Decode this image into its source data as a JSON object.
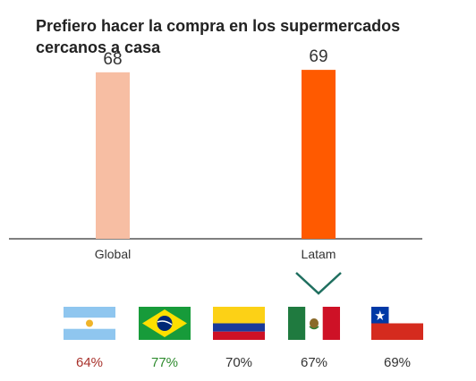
{
  "chart_data": {
    "type": "bar",
    "title": "Prefiero hacer la compra en los supermercados cercanos a casa",
    "categories": [
      "Global",
      "Latam"
    ],
    "values": [
      68,
      69
    ],
    "colors": [
      "#f7bea3",
      "#ff5a00"
    ],
    "ylim": [
      0,
      80
    ],
    "grid": false,
    "selected_category": "Latam",
    "axis_color": "#333333"
  },
  "countries": [
    {
      "flag": "argentina-flag-icon",
      "value": "64%",
      "color": "#a8312b"
    },
    {
      "flag": "brazil-flag-icon",
      "value": "77%",
      "color": "#2e8b2e"
    },
    {
      "flag": "colombia-flag-icon",
      "value": "70%",
      "color": "#333333"
    },
    {
      "flag": "mexico-flag-icon",
      "value": "67%",
      "color": "#333333"
    },
    {
      "flag": "chile-flag-icon",
      "value": "69%",
      "color": "#333333"
    }
  ]
}
